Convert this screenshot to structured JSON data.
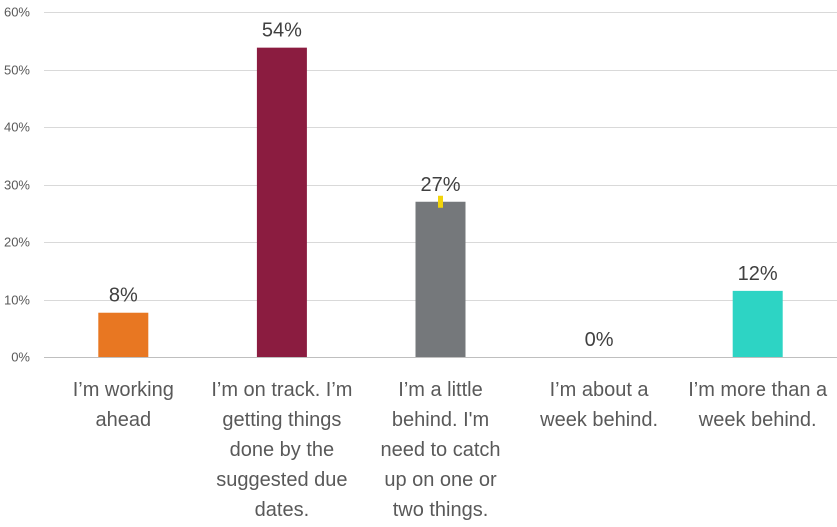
{
  "chart_data": {
    "type": "bar",
    "title": "",
    "xlabel": "",
    "ylabel": "",
    "ylim": [
      0,
      60
    ],
    "yticks": [
      0,
      10,
      20,
      30,
      40,
      50,
      60
    ],
    "ytick_labels": [
      "0%",
      "10%",
      "20%",
      "30%",
      "40%",
      "50%",
      "60%"
    ],
    "grid": true,
    "categories": [
      "I’m working ahead",
      "I’m on track. I’m getting things done by the suggested due dates.",
      "I’m a little behind. I'm need to catch up on one or two things.",
      "I’m about a week behind.",
      "I’m more than a week behind."
    ],
    "category_lines": [
      [
        "I’m working",
        "ahead"
      ],
      [
        "I’m on track. I’m",
        "getting things",
        "done by the",
        "suggested due",
        "dates."
      ],
      [
        "I’m a little",
        "behind. I'm",
        "need to catch",
        "up on one or",
        "two things."
      ],
      [
        "I’m about a",
        "week behind."
      ],
      [
        "I’m more than a",
        "week behind."
      ]
    ],
    "values": [
      7.7,
      53.8,
      27.0,
      0,
      11.5
    ],
    "data_labels": [
      "8%",
      "54%",
      "27%",
      "0%",
      "12%"
    ],
    "colors": [
      "#e87722",
      "#8b1c40",
      "#75787b",
      "#6b6b6b",
      "#2dd4c4"
    ],
    "error_marker_color": "#f2d40a"
  }
}
